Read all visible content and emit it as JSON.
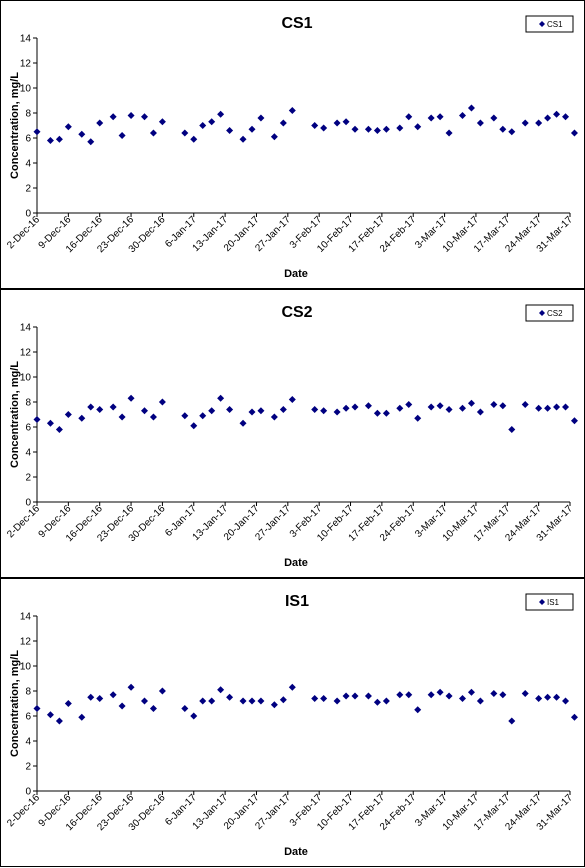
{
  "chart_data": [
    {
      "type": "scatter",
      "title": "CS1",
      "xlabel": "Date",
      "ylabel": "Concentration, mg/L",
      "ylim": [
        0,
        14
      ],
      "yticks": [
        0,
        2,
        4,
        6,
        8,
        10,
        12,
        14
      ],
      "xlim": [
        "2016-12-02",
        "2017-03-31"
      ],
      "xtick_labels": [
        "2-Dec-16",
        "9-Dec-16",
        "16-Dec-16",
        "23-Dec-16",
        "30-Dec-16",
        "6-Jan-17",
        "13-Jan-17",
        "20-Jan-17",
        "27-Jan-17",
        "3-Feb-17",
        "10-Feb-17",
        "17-Feb-17",
        "24-Feb-17",
        "3-Mar-17",
        "10-Mar-17",
        "17-Mar-17",
        "24-Mar-17",
        "31-Mar-17"
      ],
      "grid": false,
      "legend_position": "top-right",
      "marker_color": "#000080",
      "series": [
        {
          "name": "CS1",
          "points": [
            [
              "2016-12-02",
              6.5
            ],
            [
              "2016-12-05",
              5.8
            ],
            [
              "2016-12-07",
              5.9
            ],
            [
              "2016-12-09",
              6.9
            ],
            [
              "2016-12-12",
              6.3
            ],
            [
              "2016-12-14",
              5.7
            ],
            [
              "2016-12-16",
              7.2
            ],
            [
              "2016-12-19",
              7.7
            ],
            [
              "2016-12-21",
              6.2
            ],
            [
              "2016-12-23",
              7.8
            ],
            [
              "2016-12-26",
              7.7
            ],
            [
              "2016-12-28",
              6.4
            ],
            [
              "2016-12-30",
              7.3
            ],
            [
              "2017-01-04",
              6.4
            ],
            [
              "2017-01-06",
              5.9
            ],
            [
              "2017-01-08",
              7.0
            ],
            [
              "2017-01-10",
              7.3
            ],
            [
              "2017-01-12",
              7.9
            ],
            [
              "2017-01-14",
              6.6
            ],
            [
              "2017-01-17",
              5.9
            ],
            [
              "2017-01-19",
              6.7
            ],
            [
              "2017-01-21",
              7.6
            ],
            [
              "2017-01-24",
              6.1
            ],
            [
              "2017-01-26",
              7.2
            ],
            [
              "2017-01-28",
              8.2
            ],
            [
              "2017-02-02",
              7.0
            ],
            [
              "2017-02-04",
              6.8
            ],
            [
              "2017-02-07",
              7.2
            ],
            [
              "2017-02-09",
              7.3
            ],
            [
              "2017-02-11",
              6.7
            ],
            [
              "2017-02-14",
              6.7
            ],
            [
              "2017-02-16",
              6.6
            ],
            [
              "2017-02-18",
              6.7
            ],
            [
              "2017-02-21",
              6.8
            ],
            [
              "2017-02-23",
              7.7
            ],
            [
              "2017-02-25",
              6.9
            ],
            [
              "2017-02-28",
              7.6
            ],
            [
              "2017-03-02",
              7.7
            ],
            [
              "2017-03-04",
              6.4
            ],
            [
              "2017-03-07",
              7.8
            ],
            [
              "2017-03-09",
              8.4
            ],
            [
              "2017-03-11",
              7.2
            ],
            [
              "2017-03-14",
              7.6
            ],
            [
              "2017-03-16",
              6.7
            ],
            [
              "2017-03-18",
              6.5
            ],
            [
              "2017-03-21",
              7.2
            ],
            [
              "2017-03-24",
              7.2
            ],
            [
              "2017-03-26",
              7.6
            ],
            [
              "2017-03-28",
              7.9
            ],
            [
              "2017-03-30",
              7.7
            ],
            [
              "2017-04-01",
              6.4
            ]
          ]
        }
      ]
    },
    {
      "type": "scatter",
      "title": "CS2",
      "xlabel": "Date",
      "ylabel": "Concentration, mg/L",
      "ylim": [
        0,
        14
      ],
      "yticks": [
        0,
        2,
        4,
        6,
        8,
        10,
        12,
        14
      ],
      "xlim": [
        "2016-12-02",
        "2017-03-31"
      ],
      "xtick_labels": [
        "2-Dec-16",
        "9-Dec-16",
        "16-Dec-16",
        "23-Dec-16",
        "30-Dec-16",
        "6-Jan-17",
        "13-Jan-17",
        "20-Jan-17",
        "27-Jan-17",
        "3-Feb-17",
        "10-Feb-17",
        "17-Feb-17",
        "24-Feb-17",
        "3-Mar-17",
        "10-Mar-17",
        "17-Mar-17",
        "24-Mar-17",
        "31-Mar-17"
      ],
      "grid": false,
      "legend_position": "top-right",
      "marker_color": "#000080",
      "series": [
        {
          "name": "CS2",
          "points": [
            [
              "2016-12-02",
              6.6
            ],
            [
              "2016-12-05",
              6.3
            ],
            [
              "2016-12-07",
              5.8
            ],
            [
              "2016-12-09",
              7.0
            ],
            [
              "2016-12-12",
              6.7
            ],
            [
              "2016-12-14",
              7.6
            ],
            [
              "2016-12-16",
              7.4
            ],
            [
              "2016-12-19",
              7.6
            ],
            [
              "2016-12-21",
              6.8
            ],
            [
              "2016-12-23",
              8.3
            ],
            [
              "2016-12-26",
              7.3
            ],
            [
              "2016-12-28",
              6.8
            ],
            [
              "2016-12-30",
              8.0
            ],
            [
              "2017-01-04",
              6.9
            ],
            [
              "2017-01-06",
              6.1
            ],
            [
              "2017-01-08",
              6.9
            ],
            [
              "2017-01-10",
              7.3
            ],
            [
              "2017-01-12",
              8.3
            ],
            [
              "2017-01-14",
              7.4
            ],
            [
              "2017-01-17",
              6.3
            ],
            [
              "2017-01-19",
              7.2
            ],
            [
              "2017-01-21",
              7.3
            ],
            [
              "2017-01-24",
              6.8
            ],
            [
              "2017-01-26",
              7.4
            ],
            [
              "2017-01-28",
              8.2
            ],
            [
              "2017-02-02",
              7.4
            ],
            [
              "2017-02-04",
              7.3
            ],
            [
              "2017-02-07",
              7.2
            ],
            [
              "2017-02-09",
              7.5
            ],
            [
              "2017-02-11",
              7.6
            ],
            [
              "2017-02-14",
              7.7
            ],
            [
              "2017-02-16",
              7.1
            ],
            [
              "2017-02-18",
              7.1
            ],
            [
              "2017-02-21",
              7.5
            ],
            [
              "2017-02-23",
              7.8
            ],
            [
              "2017-02-25",
              6.7
            ],
            [
              "2017-02-28",
              7.6
            ],
            [
              "2017-03-02",
              7.7
            ],
            [
              "2017-03-04",
              7.4
            ],
            [
              "2017-03-07",
              7.5
            ],
            [
              "2017-03-09",
              7.9
            ],
            [
              "2017-03-11",
              7.2
            ],
            [
              "2017-03-14",
              7.8
            ],
            [
              "2017-03-16",
              7.7
            ],
            [
              "2017-03-18",
              5.8
            ],
            [
              "2017-03-21",
              7.8
            ],
            [
              "2017-03-24",
              7.5
            ],
            [
              "2017-03-26",
              7.5
            ],
            [
              "2017-03-28",
              7.6
            ],
            [
              "2017-03-30",
              7.6
            ],
            [
              "2017-04-01",
              6.5
            ]
          ]
        }
      ]
    },
    {
      "type": "scatter",
      "title": "IS1",
      "xlabel": "Date",
      "ylabel": "Concentration, mg/L",
      "ylim": [
        0,
        14
      ],
      "yticks": [
        0,
        2,
        4,
        6,
        8,
        10,
        12,
        14
      ],
      "xlim": [
        "2016-12-02",
        "2017-03-31"
      ],
      "xtick_labels": [
        "2-Dec-16",
        "9-Dec-16",
        "16-Dec-16",
        "23-Dec-16",
        "30-Dec-16",
        "6-Jan-17",
        "13-Jan-17",
        "20-Jan-17",
        "27-Jan-17",
        "3-Feb-17",
        "10-Feb-17",
        "17-Feb-17",
        "24-Feb-17",
        "3-Mar-17",
        "10-Mar-17",
        "17-Mar-17",
        "24-Mar-17",
        "31-Mar-17"
      ],
      "grid": false,
      "legend_position": "top-right",
      "marker_color": "#000080",
      "series": [
        {
          "name": "IS1",
          "points": [
            [
              "2016-12-02",
              6.6
            ],
            [
              "2016-12-05",
              6.1
            ],
            [
              "2016-12-07",
              5.6
            ],
            [
              "2016-12-09",
              7.0
            ],
            [
              "2016-12-12",
              5.9
            ],
            [
              "2016-12-14",
              7.5
            ],
            [
              "2016-12-16",
              7.4
            ],
            [
              "2016-12-19",
              7.7
            ],
            [
              "2016-12-21",
              6.8
            ],
            [
              "2016-12-23",
              8.3
            ],
            [
              "2016-12-26",
              7.2
            ],
            [
              "2016-12-28",
              6.6
            ],
            [
              "2016-12-30",
              8.0
            ],
            [
              "2017-01-04",
              6.6
            ],
            [
              "2017-01-06",
              6.0
            ],
            [
              "2017-01-08",
              7.2
            ],
            [
              "2017-01-10",
              7.2
            ],
            [
              "2017-01-12",
              8.1
            ],
            [
              "2017-01-14",
              7.5
            ],
            [
              "2017-01-17",
              7.2
            ],
            [
              "2017-01-19",
              7.2
            ],
            [
              "2017-01-21",
              7.2
            ],
            [
              "2017-01-24",
              6.9
            ],
            [
              "2017-01-26",
              7.3
            ],
            [
              "2017-01-28",
              8.3
            ],
            [
              "2017-02-02",
              7.4
            ],
            [
              "2017-02-04",
              7.4
            ],
            [
              "2017-02-07",
              7.2
            ],
            [
              "2017-02-09",
              7.6
            ],
            [
              "2017-02-11",
              7.6
            ],
            [
              "2017-02-14",
              7.6
            ],
            [
              "2017-02-16",
              7.1
            ],
            [
              "2017-02-18",
              7.2
            ],
            [
              "2017-02-21",
              7.7
            ],
            [
              "2017-02-23",
              7.7
            ],
            [
              "2017-02-25",
              6.5
            ],
            [
              "2017-02-28",
              7.7
            ],
            [
              "2017-03-02",
              7.9
            ],
            [
              "2017-03-04",
              7.6
            ],
            [
              "2017-03-07",
              7.4
            ],
            [
              "2017-03-09",
              7.9
            ],
            [
              "2017-03-11",
              7.2
            ],
            [
              "2017-03-14",
              7.8
            ],
            [
              "2017-03-16",
              7.7
            ],
            [
              "2017-03-18",
              5.6
            ],
            [
              "2017-03-21",
              7.8
            ],
            [
              "2017-03-24",
              7.4
            ],
            [
              "2017-03-26",
              7.5
            ],
            [
              "2017-03-28",
              7.5
            ],
            [
              "2017-03-30",
              7.2
            ],
            [
              "2017-04-01",
              5.9
            ]
          ]
        }
      ]
    }
  ]
}
